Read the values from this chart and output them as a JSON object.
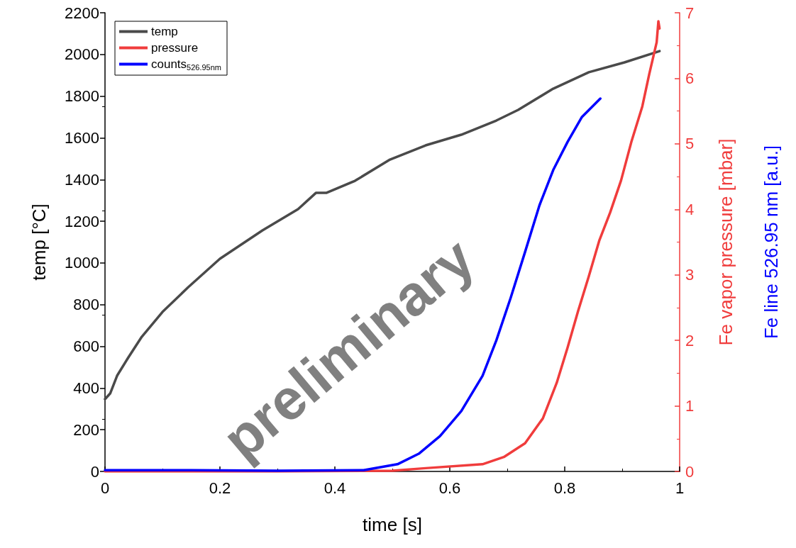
{
  "chart_data": {
    "type": "line",
    "xlabel": "time [s]",
    "ylabel": "temp [°C]",
    "y2label": "Fe vapor pressure [mbar]",
    "y3label": "Fe line 526.95 nm [a.u.]",
    "xlim": [
      0,
      1
    ],
    "xticks": [
      0,
      0.2,
      0.4,
      0.6,
      0.8,
      1
    ],
    "ylim": [
      0,
      2200
    ],
    "yticks": [
      0,
      200,
      400,
      600,
      800,
      1000,
      1200,
      1400,
      1600,
      1800,
      2000,
      2200
    ],
    "y2lim": [
      0,
      7
    ],
    "y2ticks": [
      0,
      1,
      2,
      3,
      4,
      5,
      6,
      7
    ],
    "legend": "top left",
    "grid": false,
    "marker": "none",
    "line_style": "solid",
    "annotations": [
      "preliminary"
    ],
    "series": [
      {
        "name": "temp",
        "color": "#4a4a4a",
        "x": [
          0,
          0.009,
          0.021,
          0.04,
          0.064,
          0.1,
          0.145,
          0.2,
          0.274,
          0.336,
          0.367,
          0.385,
          0.435,
          0.496,
          0.558,
          0.62,
          0.681,
          0.719,
          0.78,
          0.842,
          0.904,
          0.965
        ],
        "values": [
          347,
          374,
          459,
          544,
          646,
          765,
          884,
          1020,
          1156,
          1258,
          1336,
          1336,
          1394,
          1496,
          1564,
          1615,
          1683,
          1734,
          1836,
          1915,
          1962,
          2016
        ]
      },
      {
        "name": "pressure",
        "color": "#f03c3c",
        "axis": "y2",
        "x": [
          0,
          0.3,
          0.5,
          0.558,
          0.657,
          0.694,
          0.731,
          0.762,
          0.786,
          0.805,
          0.823,
          0.842,
          0.86,
          0.879,
          0.898,
          0.916,
          0.935,
          0.947,
          0.96,
          0.963,
          0.965
        ],
        "values": [
          0,
          0,
          0.01,
          0.05,
          0.11,
          0.22,
          0.43,
          0.81,
          1.35,
          1.89,
          2.44,
          2.98,
          3.52,
          3.95,
          4.44,
          5.03,
          5.57,
          6.06,
          6.55,
          6.87,
          6.76
        ]
      },
      {
        "name": "counts$_{526.95nm}$",
        "color": "#0000ff",
        "axis": "y2",
        "x": [
          0,
          0.15,
          0.3,
          0.45,
          0.509,
          0.546,
          0.583,
          0.62,
          0.657,
          0.681,
          0.706,
          0.731,
          0.756,
          0.78,
          0.805,
          0.83,
          0.862
        ],
        "values": [
          0.02,
          0.02,
          0.01,
          0.02,
          0.11,
          0.27,
          0.54,
          0.92,
          1.46,
          2.0,
          2.65,
          3.35,
          4.06,
          4.6,
          5.03,
          5.41,
          5.69
        ]
      }
    ]
  }
}
